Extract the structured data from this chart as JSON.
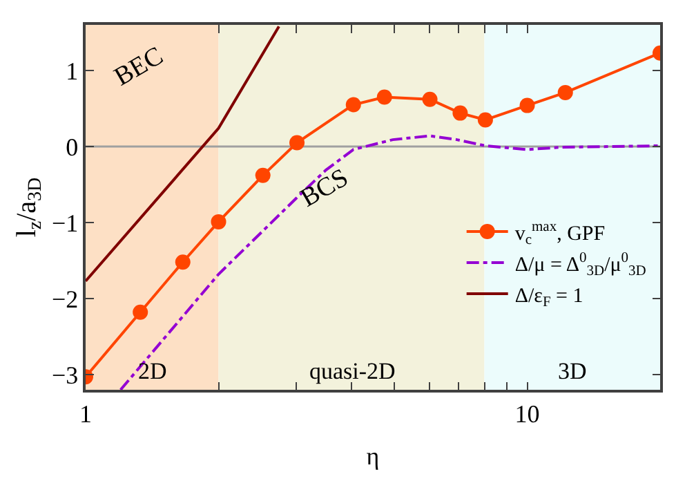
{
  "chart_data": {
    "type": "line",
    "xlabel": "η",
    "ylabel": "l$_{z}$/a$_{3D}$",
    "log": "x",
    "xlim": [
      1,
      20
    ],
    "ylim": [
      -3.2,
      1.6
    ],
    "xticks": [
      1,
      {
        "value": 2,
        "label": null
      },
      {
        "value": 3,
        "label": null
      },
      {
        "value": 4,
        "label": null
      },
      {
        "value": 5,
        "label": null
      },
      {
        "value": 6,
        "label": null
      },
      {
        "value": 7,
        "label": null
      },
      {
        "value": 8,
        "label": null
      },
      {
        "value": 9,
        "label": null
      },
      10,
      {
        "value": 20,
        "label": null
      }
    ],
    "yticks": [
      {
        "value": -3,
        "label": "−3"
      },
      {
        "value": -2,
        "label": "−2"
      },
      {
        "value": -1,
        "label": "−1"
      },
      0,
      1
    ],
    "grid": false,
    "legend": "bottom right",
    "series": [
      {
        "name": "v$_{c}$$^{max}$, GPF",
        "color": "#ff4500",
        "marker": "circle",
        "line_style": "solid",
        "x": [
          1,
          1.33,
          1.66,
          2.0,
          2.52,
          3.01,
          4.04,
          4.75,
          6.02,
          7.05,
          8.04,
          10.0,
          12.2,
          20
        ],
        "values": [
          -3.03,
          -2.18,
          -1.52,
          -0.99,
          -0.38,
          0.05,
          0.55,
          0.65,
          0.62,
          0.44,
          0.35,
          0.54,
          0.71,
          1.23
        ]
      },
      {
        "name": "Δ/μ = Δ$^{0}$$_{3D}$/μ$^{0}$$_{3D}$",
        "color": "#9400d3",
        "marker": "none",
        "line_style": "dashdot",
        "x": [
          1.2,
          2.0,
          3.0,
          3.5,
          4.04,
          4.96,
          6.02,
          6.93,
          8.04,
          10.0,
          11.9,
          20
        ],
        "values": [
          -3.2,
          -1.68,
          -0.68,
          -0.31,
          -0.04,
          0.09,
          0.14,
          0.09,
          0.01,
          -0.04,
          -0.01,
          0.01
        ]
      },
      {
        "name": "Δ/ε$_{F}$ = 1",
        "color": "#800000",
        "marker": "none",
        "line_style": "solid",
        "x": [
          1,
          2.0,
          2.74
        ],
        "values": [
          -1.77,
          0.24,
          1.58
        ]
      }
    ],
    "ref_lines": [
      {
        "axis": "y",
        "value": 0,
        "color": "#a0a0a0"
      }
    ],
    "bands": [
      {
        "axis": "x",
        "from": 1,
        "to": 2,
        "label": "2D",
        "color": "#fde0c5"
      },
      {
        "axis": "x",
        "from": 2,
        "to": 8,
        "label": "quasi-2D",
        "color": "#f3f2dc"
      },
      {
        "axis": "x",
        "from": 8,
        "to": 20,
        "label": "3D",
        "color": "#ecfcfc"
      }
    ],
    "annotations": [
      "BEC",
      "BCS"
    ]
  }
}
